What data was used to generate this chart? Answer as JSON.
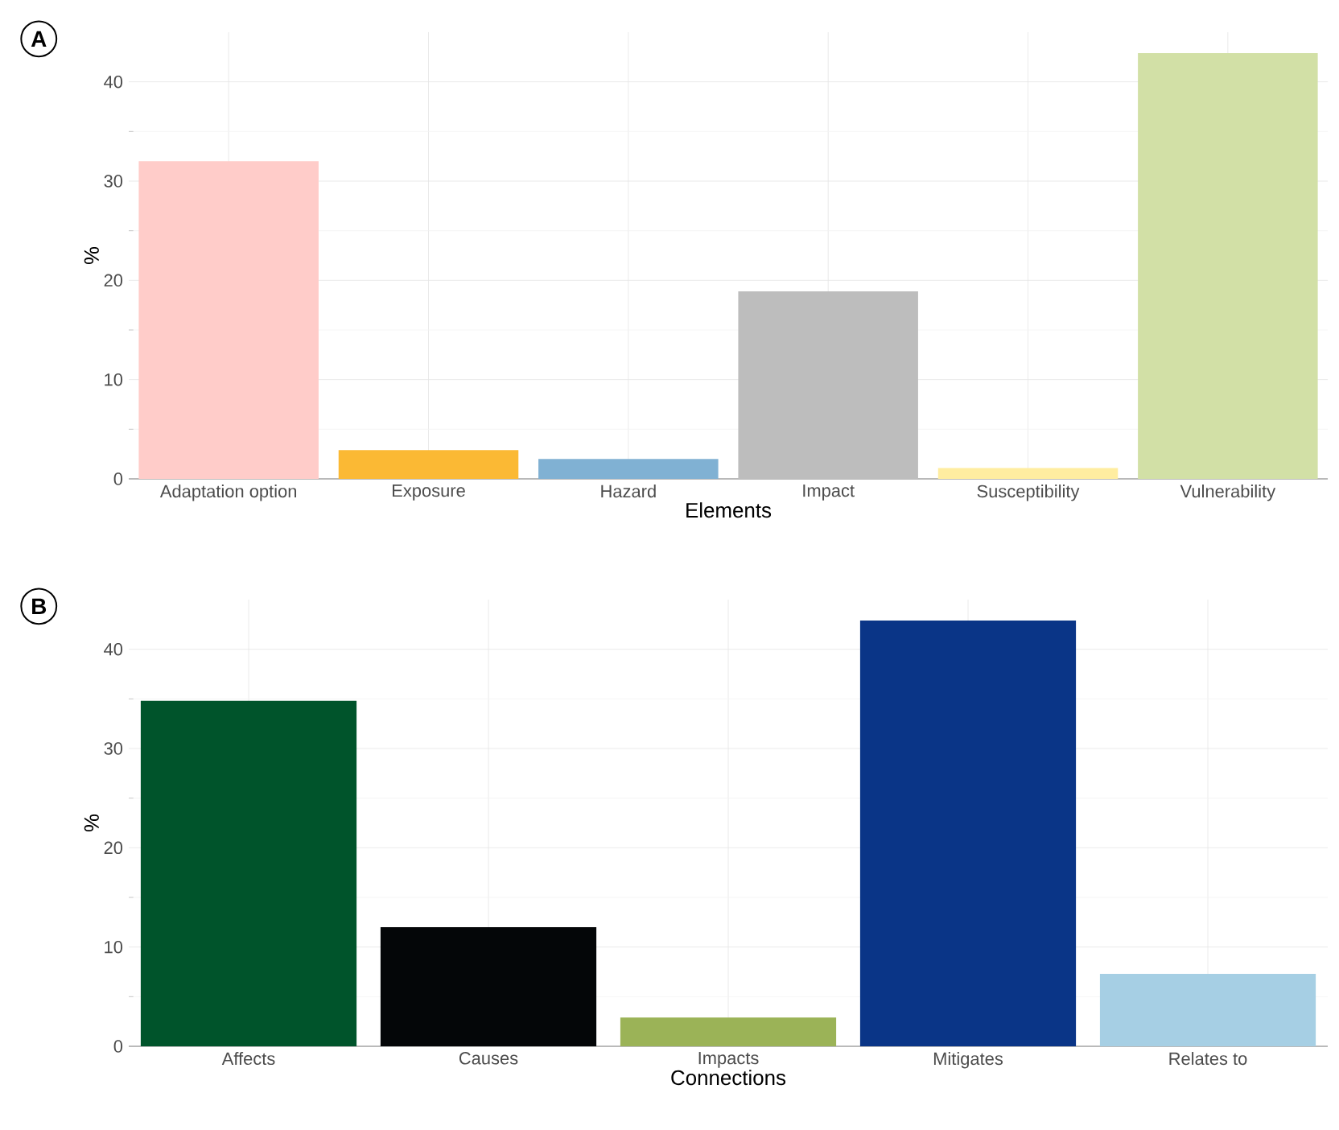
{
  "chart_data": [
    {
      "type": "bar",
      "annotations": [
        "A"
      ],
      "xlabel": "Elements",
      "ylabel": "%",
      "categories": [
        "Adaptation option",
        "Exposure",
        "Hazard",
        "Impact",
        "Susceptibility",
        "Vulnerability"
      ],
      "values": [
        32.0,
        2.9,
        2.0,
        18.9,
        1.1,
        42.9
      ],
      "colors": [
        "#ffccc9",
        "#fbb934",
        "#80b1d3",
        "#bdbdbd",
        "#ffeda0",
        "#d2e0a6"
      ],
      "ylim": [
        0,
        45
      ],
      "yticks": [
        0,
        10,
        20,
        30,
        40
      ],
      "grid": true
    },
    {
      "type": "bar",
      "annotations": [
        "B"
      ],
      "xlabel": "Connections",
      "ylabel": "%",
      "categories": [
        "Affects",
        "Causes",
        "Impacts",
        "Mitigates",
        "Relates to"
      ],
      "values": [
        34.8,
        12.0,
        2.9,
        42.9,
        7.3
      ],
      "colors": [
        "#00542b",
        "#040608",
        "#9bb357",
        "#0a3587",
        "#a6cfe4"
      ],
      "ylim": [
        0,
        45
      ],
      "yticks": [
        0,
        10,
        20,
        30,
        40
      ],
      "grid": true
    }
  ]
}
